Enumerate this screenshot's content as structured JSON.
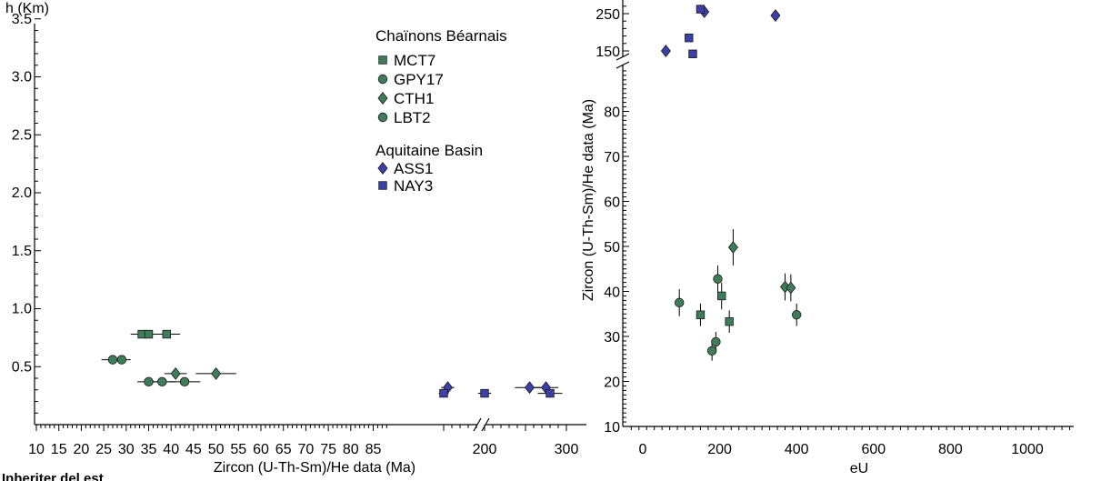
{
  "colors": {
    "green_fill": "#3f7d5a",
    "blue_fill": "#3b3fa8",
    "marker_stroke": "#1a1a1a"
  },
  "left_panel": {
    "ylabel_top": "h (Km)",
    "xlabel": "Zircon (U-Th-Sm)/He data (Ma)",
    "y_ticks": [
      "0.5",
      "1.0",
      "1.5",
      "2.0",
      "2.5",
      "3.0",
      "3.5"
    ],
    "x_ticks_low": [
      "10",
      "15",
      "20",
      "25",
      "30",
      "35",
      "40",
      "45",
      "50",
      "55",
      "60",
      "65",
      "70",
      "75",
      "80",
      "85"
    ],
    "x_ticks_high": [
      "200",
      "300"
    ],
    "legend": {
      "group1": "Chaïnons Béarnais",
      "group1_items": [
        "MCT7",
        "GPY17",
        "CTH1",
        "LBT2"
      ],
      "group2": "Aquitaine Basin",
      "group2_items": [
        "ASS1",
        "NAY3"
      ]
    }
  },
  "right_panel": {
    "ylabel": "Zircon (U-Th-Sm)/He data (Ma)",
    "xlabel": "eU",
    "y_ticks_low": [
      "10",
      "20",
      "30",
      "40",
      "50",
      "60",
      "70",
      "80"
    ],
    "y_ticks_high": [
      "150",
      "250"
    ],
    "x_ticks": [
      "0",
      "200",
      "400",
      "600",
      "800",
      "1000"
    ]
  },
  "bottom_text": "Inheriter del est",
  "chart_data": [
    {
      "type": "scatter",
      "xlabel": "Zircon (U-Th-Sm)/He data (Ma)",
      "ylabel": "h (Km)",
      "ylim": [
        0,
        3.5
      ],
      "x_scale": "broken: 10–88 Ma linear, break, 150–300 Ma",
      "series": [
        {
          "name": "MCT7",
          "marker": "square",
          "color": "green",
          "points": [
            {
              "x": 33.5,
              "y": 0.78,
              "xerr": 2.5
            },
            {
              "x": 35,
              "y": 0.78,
              "xerr": 2.5
            },
            {
              "x": 39,
              "y": 0.78,
              "xerr": 3
            }
          ]
        },
        {
          "name": "GPY17",
          "marker": "circle",
          "color": "green",
          "points": [
            {
              "x": 27,
              "y": 0.56,
              "xerr": 2.5
            },
            {
              "x": 29,
              "y": 0.56,
              "xerr": 2
            }
          ]
        },
        {
          "name": "CTH1",
          "marker": "diamond",
          "color": "green",
          "points": [
            {
              "x": 41,
              "y": 0.44,
              "xerr": 2.5
            },
            {
              "x": 50,
              "y": 0.44,
              "xerr": 4.5
            }
          ]
        },
        {
          "name": "LBT2",
          "marker": "circle",
          "color": "green",
          "points": [
            {
              "x": 35,
              "y": 0.37,
              "xerr": 2.5
            },
            {
              "x": 38,
              "y": 0.37,
              "xerr": 3
            },
            {
              "x": 43,
              "y": 0.37,
              "xerr": 3.5
            }
          ]
        },
        {
          "name": "ASS1",
          "marker": "diamond",
          "color": "blue",
          "points": [
            {
              "x": 155,
              "y": 0.32,
              "xerr": 8
            },
            {
              "x": 255,
              "y": 0.32,
              "xerr": 18
            },
            {
              "x": 275,
              "y": 0.32,
              "xerr": 15
            }
          ]
        },
        {
          "name": "NAY3",
          "marker": "square",
          "color": "blue",
          "points": [
            {
              "x": 150,
              "y": 0.27,
              "xerr": 6
            },
            {
              "x": 200,
              "y": 0.27,
              "xerr": 8
            },
            {
              "x": 280,
              "y": 0.27,
              "xerr": 15
            }
          ]
        }
      ]
    },
    {
      "type": "scatter",
      "xlabel": "eU",
      "ylabel": "Zircon (U-Th-Sm)/He data (Ma)",
      "xlim": [
        -70,
        1180
      ],
      "y_scale": "broken: 10–90 Ma linear, break, 150–250 Ma",
      "series": [
        {
          "marker": "circle",
          "color": "green",
          "points": [
            {
              "x": 95,
              "y": 37.5,
              "yerr": 3
            },
            {
              "x": 180,
              "y": 26.8,
              "yerr": 2.2
            },
            {
              "x": 190,
              "y": 28.8,
              "yerr": 2.2
            },
            {
              "x": 195,
              "y": 42.8,
              "yerr": 3
            },
            {
              "x": 400,
              "y": 34.8,
              "yerr": 2.5
            }
          ]
        },
        {
          "marker": "square",
          "color": "green",
          "points": [
            {
              "x": 150,
              "y": 34.8,
              "yerr": 2.5
            },
            {
              "x": 205,
              "y": 39,
              "yerr": 3
            },
            {
              "x": 225,
              "y": 33.3,
              "yerr": 2.5
            }
          ]
        },
        {
          "marker": "diamond",
          "color": "green",
          "points": [
            {
              "x": 235,
              "y": 49.8,
              "yerr": 4
            },
            {
              "x": 370,
              "y": 41,
              "yerr": 3
            },
            {
              "x": 385,
              "y": 40.8,
              "yerr": 3
            }
          ]
        },
        {
          "marker": "diamond",
          "color": "blue",
          "points": [
            {
              "x": 60,
              "y": 150,
              "yerr": 5
            },
            {
              "x": 160,
              "y": 255,
              "yerr": 10
            },
            {
              "x": 345,
              "y": 245,
              "yerr": 10
            }
          ]
        },
        {
          "marker": "square",
          "color": "blue",
          "points": [
            {
              "x": 120,
              "y": 185,
              "yerr": 8
            },
            {
              "x": 130,
              "y": 142,
              "yerr": 5
            },
            {
              "x": 150,
              "y": 262,
              "yerr": 8
            }
          ]
        }
      ]
    }
  ]
}
